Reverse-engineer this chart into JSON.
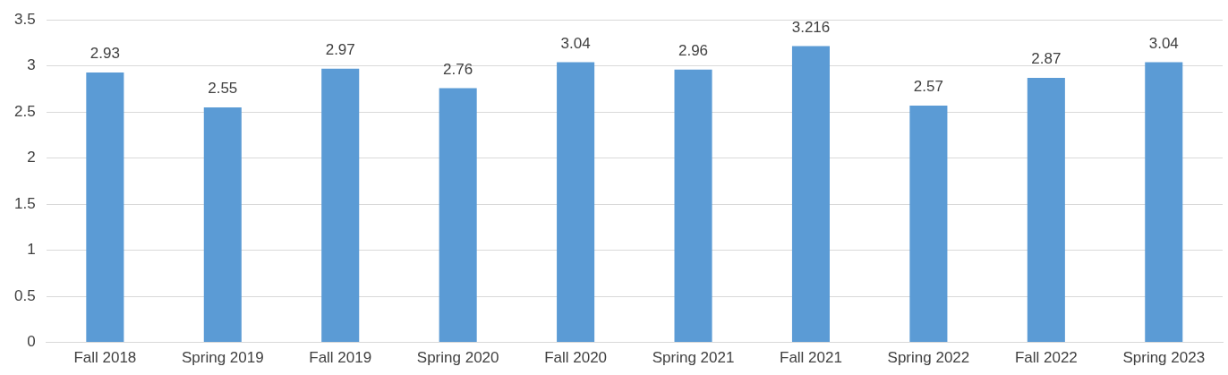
{
  "chart_data": {
    "type": "bar",
    "categories": [
      "Fall 2018",
      "Spring 2019",
      "Fall 2019",
      "Spring 2020",
      "Fall 2020",
      "Spring 2021",
      "Fall 2021",
      "Spring 2022",
      "Fall 2022",
      "Spring 2023"
    ],
    "values": [
      2.93,
      2.55,
      2.97,
      2.76,
      3.04,
      2.96,
      3.216,
      2.57,
      2.87,
      3.04
    ],
    "color": "#5b9bd5",
    "ylim": [
      0,
      3.5
    ],
    "yticks": [
      0,
      0.5,
      1,
      1.5,
      2,
      2.5,
      3,
      3.5
    ],
    "grid": "y",
    "data_labels": true,
    "legend": false
  }
}
